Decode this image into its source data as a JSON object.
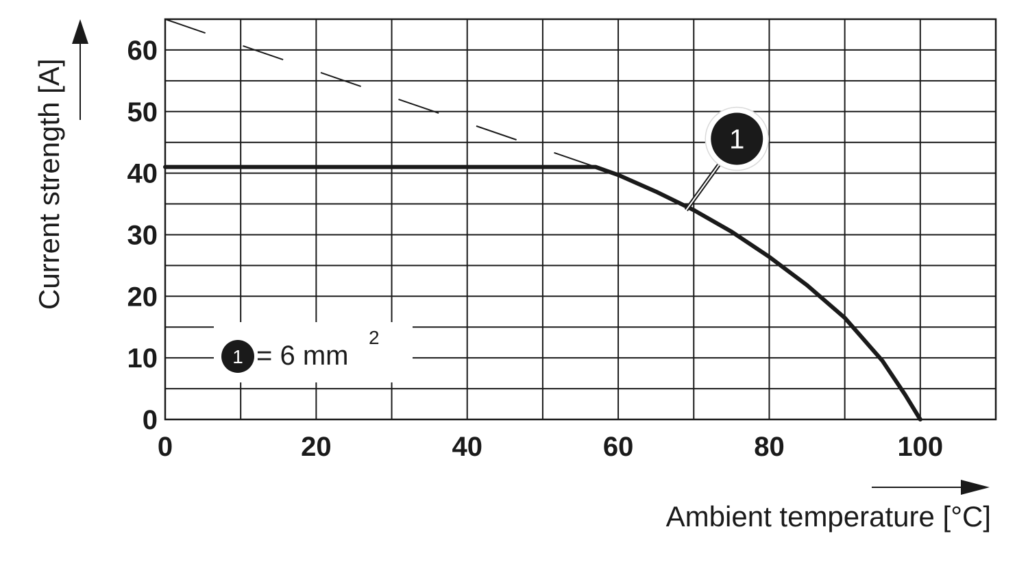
{
  "chart_data": {
    "type": "line",
    "xlabel": "Ambient temperature [°C]",
    "ylabel": "Current strength [A]",
    "xlim": [
      0,
      110
    ],
    "ylim": [
      0,
      65
    ],
    "x_ticks": [
      0,
      20,
      40,
      60,
      80,
      100
    ],
    "y_ticks": [
      0,
      10,
      20,
      30,
      40,
      50,
      60
    ],
    "x_minor_step": 10,
    "y_minor_step": 5,
    "grid": true,
    "series": [
      {
        "name": "1",
        "style": "solid",
        "x": [
          0,
          57,
          60,
          65,
          70,
          75,
          80,
          85,
          90,
          95,
          98,
          100
        ],
        "y": [
          41,
          41,
          39.7,
          37,
          34,
          30.5,
          26.4,
          21.8,
          16.5,
          9.5,
          4,
          0
        ]
      },
      {
        "style": "dashed",
        "x": [
          0,
          57
        ],
        "y": [
          65,
          41
        ]
      }
    ],
    "annotation": {
      "label": "1",
      "at_x": 69,
      "at_y": 34
    },
    "legend": {
      "marker": "1",
      "text": "= 6 mm",
      "superscript": "2",
      "position": "bottom-left"
    },
    "colors": {
      "line": "#1a1a1a",
      "grid": "#1a1a1a",
      "background": "#ffffff"
    }
  }
}
